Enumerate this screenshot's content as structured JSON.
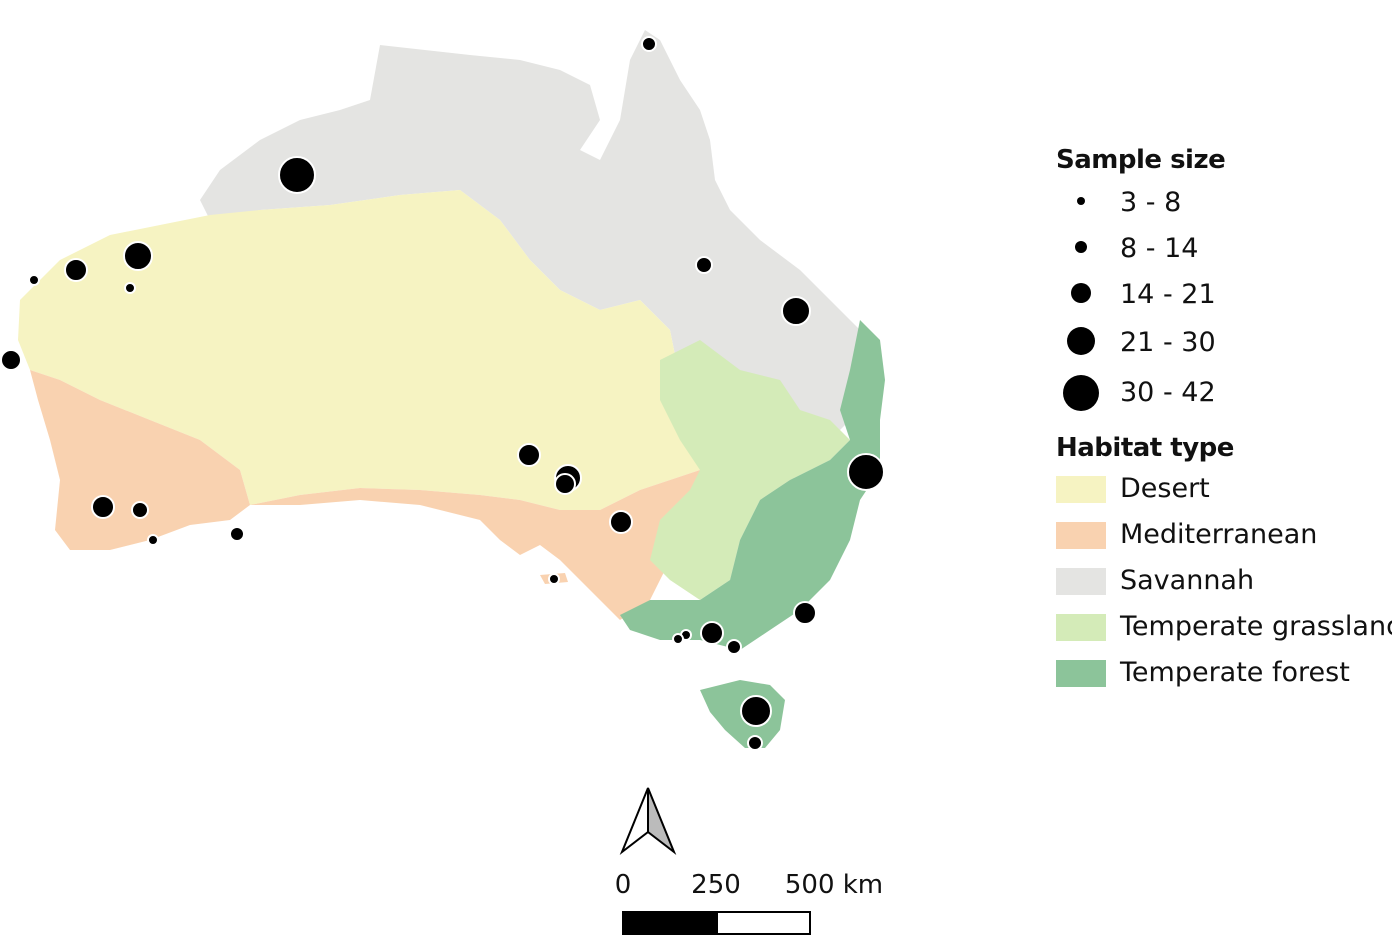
{
  "legend": {
    "sample_size_title": "Sample size",
    "sample_size_classes": [
      "3 - 8",
      "8 - 14",
      "14 - 21",
      "21 - 30",
      "30 - 42"
    ],
    "habitat_title": "Habitat type",
    "habitat_types": [
      {
        "name": "Desert",
        "color": "#f6f3c2"
      },
      {
        "name": "Mediterranean",
        "color": "#f9d2b0"
      },
      {
        "name": "Savannah",
        "color": "#e4e4e2"
      },
      {
        "name": "Temperate grassland",
        "color": "#d4ebb8"
      },
      {
        "name": "Temperate forest",
        "color": "#8cc49a"
      }
    ]
  },
  "scale_bar": {
    "labels": [
      "0",
      "250",
      "500 km"
    ],
    "segment_colors": [
      "#000000",
      "#ffffff"
    ]
  },
  "north_arrow": {
    "icon": "north-arrow-icon"
  },
  "sample_sites": {
    "description_units": "sample size class index 1-5",
    "classes": [
      1,
      1,
      2,
      3,
      3,
      4,
      4,
      5,
      5
    ]
  }
}
